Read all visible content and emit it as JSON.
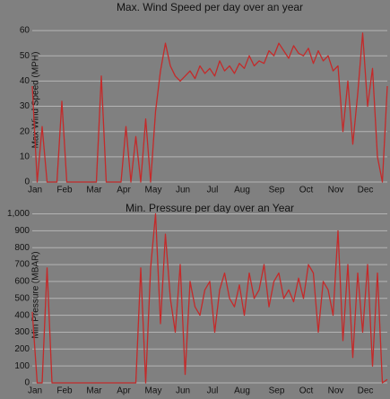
{
  "chart_data": [
    {
      "type": "line",
      "title": "Max. Wind Speed per day over an year",
      "y_label": "Max Wind Speed (MPH)",
      "color": "#c42a2a",
      "ylim": [
        0,
        65
      ],
      "yticks": [
        0,
        10,
        20,
        30,
        40,
        50,
        60
      ],
      "grid": true,
      "categories": [
        "Jan",
        null,
        null,
        null,
        null,
        null,
        "Feb",
        null,
        null,
        null,
        null,
        null,
        "Mar",
        null,
        null,
        null,
        null,
        null,
        "Apr",
        null,
        null,
        null,
        null,
        null,
        "May",
        null,
        null,
        null,
        null,
        null,
        "Jun",
        null,
        null,
        null,
        null,
        null,
        "Jul",
        null,
        null,
        null,
        null,
        null,
        "Aug",
        null,
        null,
        null,
        null,
        null,
        null,
        "Sep",
        null,
        null,
        null,
        null,
        null,
        "Oct",
        null,
        null,
        null,
        null,
        null,
        "Nov",
        null,
        null,
        null,
        null,
        null,
        "Dec",
        null,
        null,
        null,
        null,
        null
      ],
      "values": [
        38,
        0,
        22,
        0,
        0,
        0,
        32,
        0,
        0,
        0,
        0,
        0,
        0,
        0,
        42,
        0,
        0,
        0,
        0,
        22,
        0,
        18,
        0,
        25,
        0,
        28,
        44,
        55,
        46,
        42,
        40,
        42,
        44,
        41,
        46,
        43,
        45,
        42,
        48,
        44,
        46,
        43,
        47,
        45,
        50,
        46,
        48,
        47,
        52,
        50,
        55,
        52,
        49,
        54,
        51,
        50,
        53,
        47,
        52,
        48,
        50,
        44,
        46,
        20,
        40,
        15,
        35,
        59,
        30,
        45,
        10,
        0,
        38
      ]
    },
    {
      "type": "line",
      "title": "Min. Pressure per day over an Year",
      "y_label": "Min Pressure (MBAR)",
      "color": "#c42a2a",
      "ylim": [
        0,
        1040
      ],
      "yticks": [
        0,
        100,
        200,
        300,
        400,
        500,
        600,
        700,
        800,
        900,
        {
          "value": 1000,
          "label": "1,000"
        }
      ],
      "grid": true,
      "categories": [
        "Jan",
        null,
        null,
        null,
        null,
        null,
        "Feb",
        null,
        null,
        null,
        null,
        null,
        "Mar",
        null,
        null,
        null,
        null,
        null,
        "Apr",
        null,
        null,
        null,
        null,
        null,
        "May",
        null,
        null,
        null,
        null,
        null,
        "Jun",
        null,
        null,
        null,
        null,
        null,
        "Jul",
        null,
        null,
        null,
        null,
        null,
        "Aug",
        null,
        null,
        null,
        null,
        null,
        null,
        "Sep",
        null,
        null,
        null,
        null,
        null,
        "Oct",
        null,
        null,
        null,
        null,
        null,
        "Nov",
        null,
        null,
        null,
        null,
        null,
        "Dec",
        null,
        null,
        null,
        null,
        null
      ],
      "values": [
        420,
        0,
        0,
        680,
        0,
        0,
        0,
        0,
        0,
        0,
        0,
        0,
        0,
        0,
        0,
        0,
        0,
        0,
        0,
        0,
        0,
        0,
        680,
        0,
        680,
        1000,
        350,
        880,
        500,
        300,
        700,
        50,
        600,
        450,
        400,
        550,
        600,
        300,
        550,
        650,
        500,
        450,
        580,
        400,
        650,
        500,
        550,
        700,
        450,
        600,
        650,
        500,
        550,
        480,
        620,
        500,
        700,
        650,
        300,
        600,
        550,
        400,
        900,
        250,
        700,
        150,
        650,
        300,
        700,
        100,
        650,
        0,
        20
      ]
    }
  ]
}
